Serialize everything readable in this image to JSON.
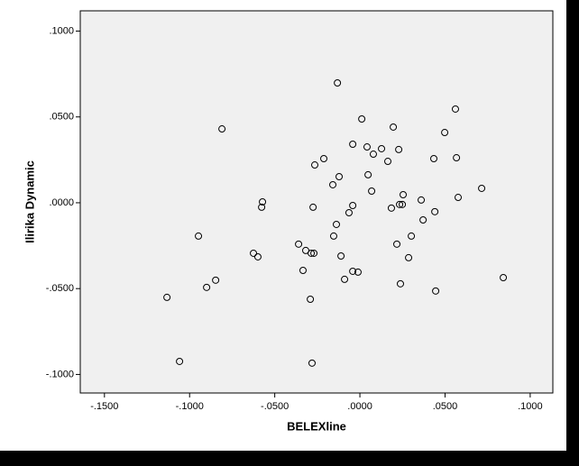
{
  "chart_data": {
    "type": "scatter",
    "x_label": "BELEXline",
    "y_label": "Ilirika Dynamic",
    "x": [
      -0.0132,
      0.0561,
      -0.081,
      0.0011,
      0.0196,
      0.0498,
      -0.0042,
      0.0042,
      0.0127,
      0.0228,
      0.0079,
      -0.0212,
      0.0164,
      0.0434,
      0.0567,
      -0.0265,
      -0.0122,
      0.0048,
      -0.0159,
      0.0069,
      0.0254,
      0.0715,
      0.0577,
      -0.0572,
      -0.0577,
      -0.0275,
      -0.0042,
      0.0233,
      0.0249,
      0.0185,
      0.036,
      0.044,
      -0.0064,
      -0.0138,
      0.0371,
      -0.0948,
      -0.0154,
      0.0302,
      -0.036,
      0.0217,
      -0.0625,
      -0.0318,
      -0.0286,
      -0.027,
      -0.0599,
      -0.0111,
      0.0286,
      -0.0334,
      -0.0042,
      -0.0011,
      0.0842,
      -0.009,
      -0.0847,
      0.0238,
      -0.09,
      0.0445,
      -0.1133,
      -0.0291,
      -0.1059,
      -0.0281
    ],
    "values": [
      0.0698,
      0.0546,
      0.043,
      0.0488,
      0.0441,
      0.0409,
      0.0341,
      0.0325,
      0.0315,
      0.031,
      0.0283,
      0.0257,
      0.0241,
      0.0257,
      0.0262,
      0.022,
      0.0152,
      0.0163,
      0.0105,
      0.0068,
      0.0047,
      0.0084,
      0.0031,
      0.0005,
      -0.0026,
      -0.0026,
      -0.0016,
      -0.001,
      -0.001,
      -0.0031,
      0.0016,
      -0.0052,
      -0.0058,
      -0.0126,
      -0.01,
      -0.0194,
      -0.0194,
      -0.0194,
      -0.0241,
      -0.0241,
      -0.0294,
      -0.0278,
      -0.0294,
      -0.0294,
      -0.0315,
      -0.031,
      -0.032,
      -0.0394,
      -0.0399,
      -0.0404,
      -0.0436,
      -0.0446,
      -0.0451,
      -0.0472,
      -0.0493,
      -0.0514,
      -0.0551,
      -0.0562,
      -0.0924,
      -0.0934
    ],
    "xlim": [
      -0.1642,
      0.1133
    ],
    "ylim": [
      -0.1108,
      0.1118
    ],
    "xticks": [
      {
        "value": -0.15,
        "label": "-.1500"
      },
      {
        "value": -0.1,
        "label": "-.1000"
      },
      {
        "value": -0.05,
        "label": "-.0500"
      },
      {
        "value": 0,
        "label": ".0000"
      },
      {
        "value": 0.05,
        "label": ".0500"
      },
      {
        "value": 0.1,
        "label": ".1000"
      }
    ],
    "yticks": [
      {
        "value": -0.1,
        "label": "-.1000"
      },
      {
        "value": -0.05,
        "label": "-.0500"
      },
      {
        "value": 0,
        "label": ".0000"
      },
      {
        "value": 0.05,
        "label": ".0500"
      },
      {
        "value": 0.1,
        "label": ".1000"
      }
    ],
    "marker_color": "#000000",
    "background": "#f0f0f0"
  }
}
